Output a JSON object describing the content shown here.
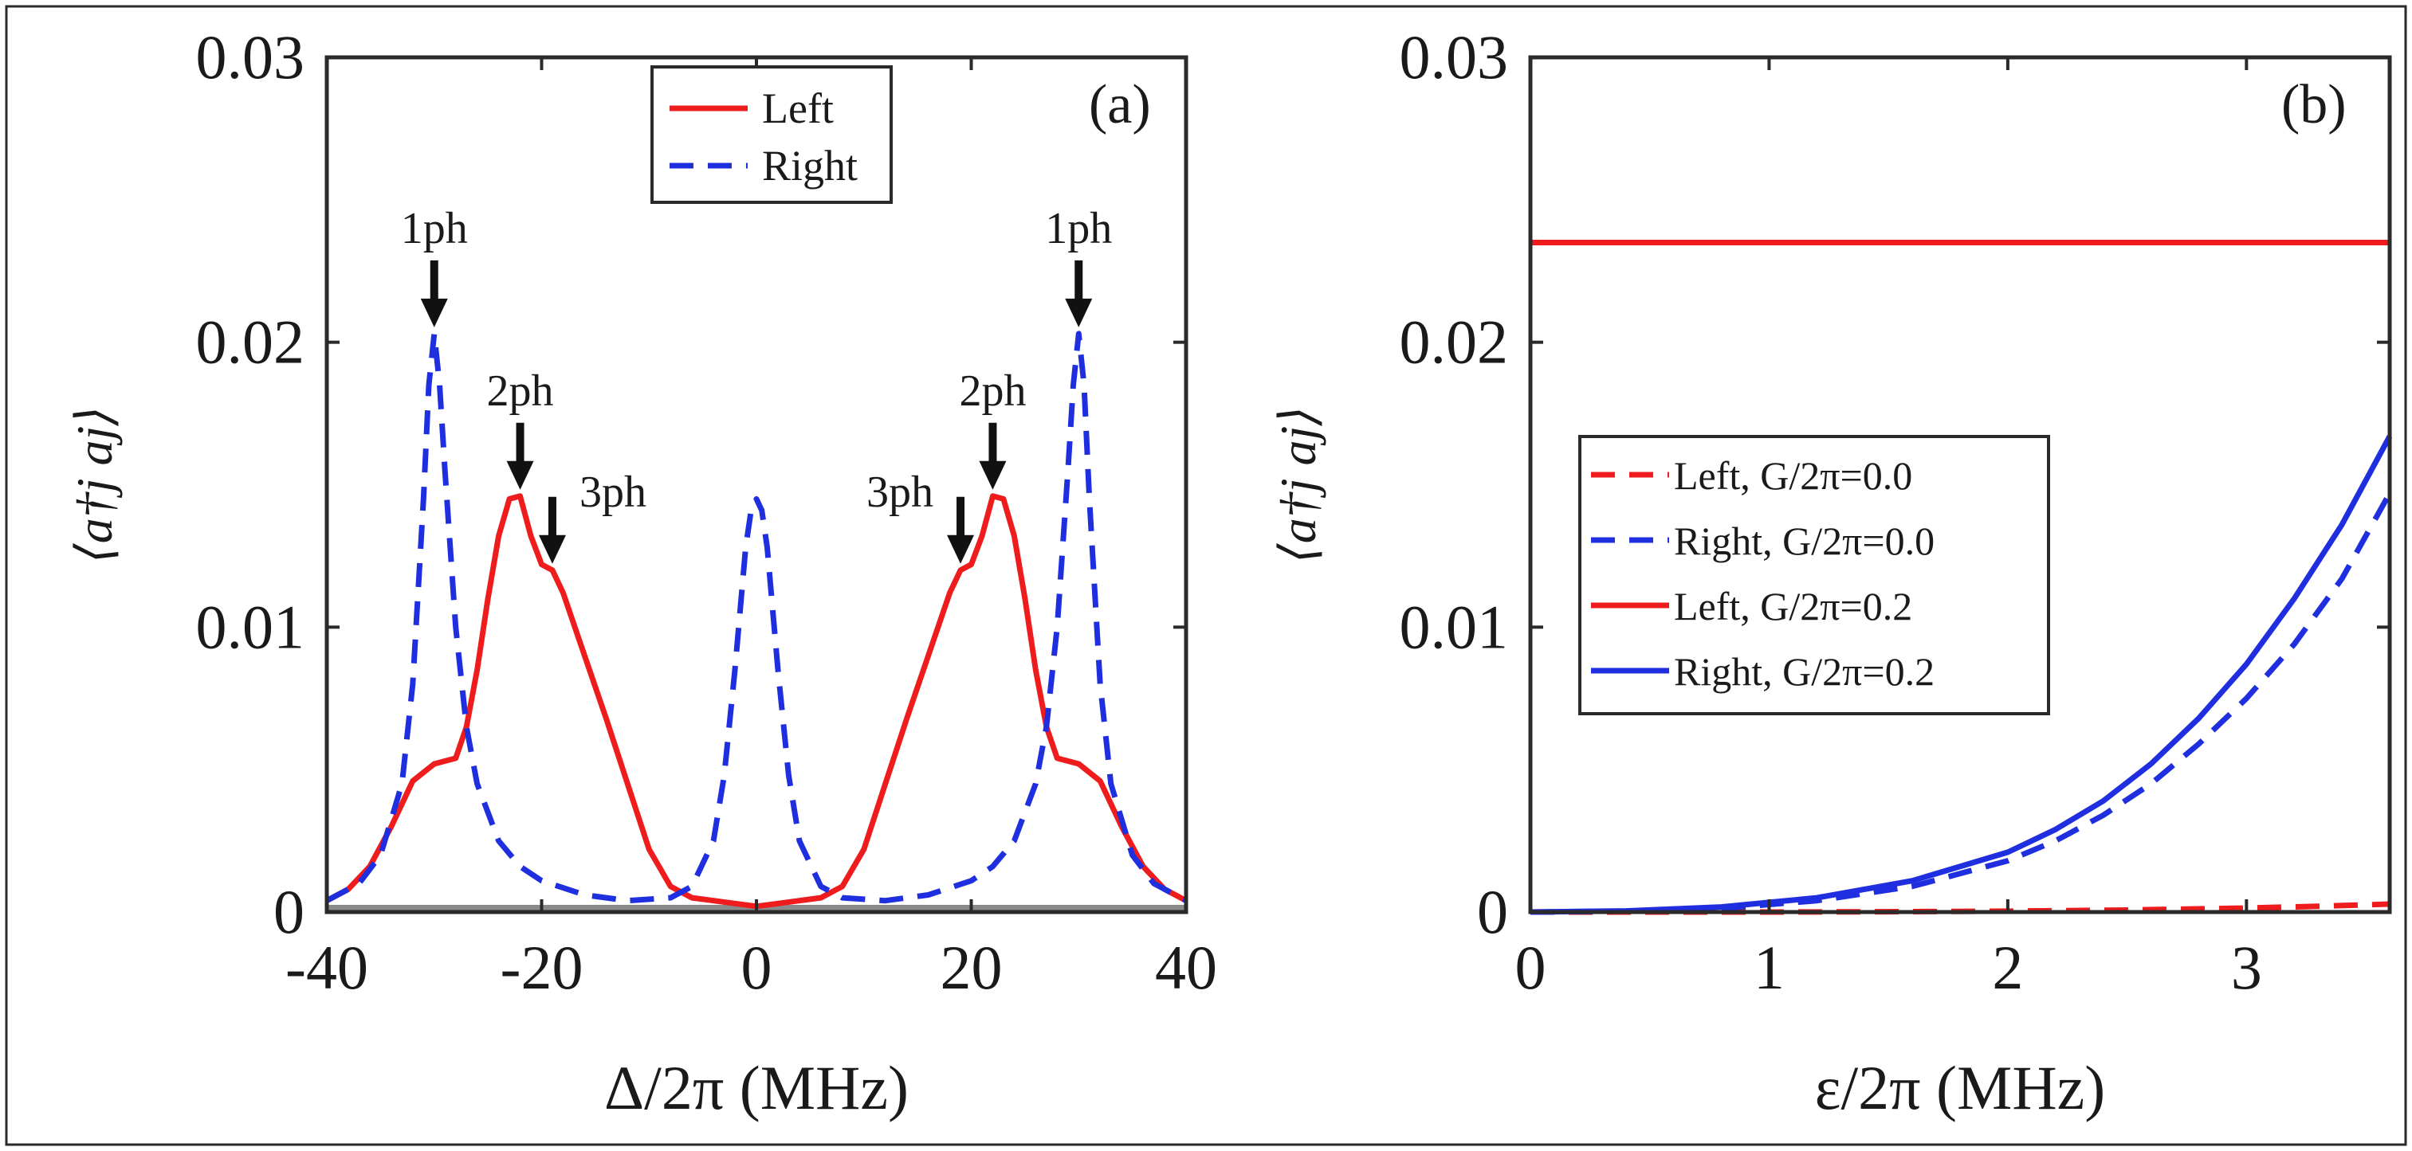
{
  "colors": {
    "left": "#ee1c1c",
    "right": "#1f2fe0",
    "axis": "#2a2a2a",
    "arrow": "#111111"
  },
  "chart_data": [
    {
      "panel": "(a)",
      "type": "line",
      "xlabel": "Δ/2π (MHz)",
      "ylabel": "⟨a†j aj⟩",
      "xlim": [
        -40,
        40
      ],
      "ylim": [
        0,
        0.03
      ],
      "xticks": [
        -40,
        -20,
        0,
        20,
        40
      ],
      "xtick_labels": [
        "-40",
        "-20",
        "0",
        "20",
        "40"
      ],
      "yticks": [
        0,
        0.01,
        0.02,
        0.03
      ],
      "ytick_labels": [
        "0",
        "0.01",
        "0.02",
        "0.03"
      ],
      "legend": {
        "placement": "top-center",
        "entries": [
          "Left",
          "Right"
        ]
      },
      "series": [
        {
          "name": "Left",
          "style": "solid",
          "color_key": "left",
          "x": [
            -40,
            -38,
            -36,
            -34,
            -32,
            -30,
            -28,
            -27,
            -26,
            -25,
            -24,
            -23,
            -22,
            -21,
            -20,
            -19,
            -18,
            -16,
            -14,
            -12,
            -10,
            -8,
            -6,
            -4,
            -2,
            0,
            2,
            4,
            6,
            8,
            10,
            12,
            14,
            16,
            18,
            19,
            20,
            21,
            22,
            23,
            24,
            25,
            26,
            27,
            28,
            30,
            32,
            34,
            36,
            38,
            40
          ],
          "y": [
            0.0004,
            0.0008,
            0.0016,
            0.003,
            0.0046,
            0.0052,
            0.0054,
            0.0065,
            0.0085,
            0.011,
            0.0132,
            0.0145,
            0.0146,
            0.0132,
            0.0122,
            0.012,
            0.0112,
            0.009,
            0.0068,
            0.0045,
            0.0022,
            0.0009,
            0.0005,
            0.0004,
            0.0003,
            0.0002,
            0.0003,
            0.0004,
            0.0005,
            0.0009,
            0.0022,
            0.0045,
            0.0068,
            0.009,
            0.0112,
            0.012,
            0.0122,
            0.0132,
            0.0146,
            0.0145,
            0.0132,
            0.011,
            0.0085,
            0.0065,
            0.0054,
            0.0052,
            0.0046,
            0.003,
            0.0016,
            0.0008,
            0.0004
          ]
        },
        {
          "name": "Right",
          "style": "dashed",
          "color_key": "right",
          "x": [
            -40,
            -37,
            -35,
            -33,
            -32,
            -31,
            -30.5,
            -30,
            -29.5,
            -29,
            -28,
            -27,
            -26,
            -24,
            -22,
            -20,
            -16,
            -12,
            -8,
            -6,
            -4,
            -3,
            -2,
            -1,
            -0.5,
            0,
            0.5,
            1,
            2,
            3,
            4,
            6,
            8,
            12,
            16,
            20,
            22,
            24,
            26,
            27,
            28,
            29,
            29.5,
            30,
            30.5,
            31,
            32,
            33,
            35,
            37,
            40
          ],
          "y": [
            0.0004,
            0.001,
            0.002,
            0.0045,
            0.008,
            0.0145,
            0.0185,
            0.0203,
            0.0185,
            0.0155,
            0.01,
            0.0065,
            0.0045,
            0.0025,
            0.0016,
            0.0011,
            0.0006,
            0.0004,
            0.0005,
            0.0009,
            0.0025,
            0.0048,
            0.0085,
            0.0128,
            0.0141,
            0.0145,
            0.0141,
            0.0128,
            0.0085,
            0.0048,
            0.0025,
            0.0009,
            0.0005,
            0.0004,
            0.0006,
            0.0011,
            0.0016,
            0.0025,
            0.0045,
            0.0065,
            0.01,
            0.0155,
            0.0185,
            0.0203,
            0.0185,
            0.0145,
            0.008,
            0.0045,
            0.002,
            0.001,
            0.0004
          ]
        }
      ],
      "annotations": [
        {
          "text": "1ph",
          "x": -30,
          "y": 0.0203
        },
        {
          "text": "2ph",
          "x": -22,
          "y": 0.0146
        },
        {
          "text": "3ph",
          "x": -19,
          "y": 0.012
        },
        {
          "text": "3ph",
          "x": 19,
          "y": 0.012
        },
        {
          "text": "2ph",
          "x": 22,
          "y": 0.0146
        },
        {
          "text": "1ph",
          "x": 30,
          "y": 0.0203
        }
      ]
    },
    {
      "panel": "(b)",
      "type": "line",
      "xlabel": "ε/2π (MHz)",
      "ylabel": "⟨a†j aj⟩",
      "xlim": [
        0,
        3.6
      ],
      "ylim": [
        0,
        0.03
      ],
      "xticks": [
        0,
        1,
        2,
        3
      ],
      "xtick_labels": [
        "0",
        "1",
        "2",
        "3"
      ],
      "yticks": [
        0,
        0.01,
        0.02,
        0.03
      ],
      "ytick_labels": [
        "0",
        "0.01",
        "0.02",
        "0.03"
      ],
      "legend": {
        "placement": "center-left",
        "entries": [
          "Left, G/2π=0.0",
          "Right, G/2π=0.0",
          "Left, G/2π=0.2",
          "Right, G/2π=0.2"
        ]
      },
      "series": [
        {
          "name": "Left, G/2π=0.0",
          "style": "dashed",
          "color_key": "left",
          "x": [
            0,
            0.5,
            1,
            1.5,
            2,
            2.5,
            3,
            3.3,
            3.6
          ],
          "y": [
            0,
            0,
            0,
            1e-05,
            3e-05,
            7e-05,
            0.00014,
            0.0002,
            0.00028
          ]
        },
        {
          "name": "Right, G/2π=0.0",
          "style": "dashed",
          "color_key": "right",
          "x": [
            0,
            0.4,
            0.8,
            1.2,
            1.6,
            2.0,
            2.2,
            2.4,
            2.6,
            2.8,
            3.0,
            3.2,
            3.4,
            3.6
          ],
          "y": [
            0,
            3e-05,
            0.00013,
            0.0004,
            0.0009,
            0.0018,
            0.0025,
            0.0034,
            0.0045,
            0.0059,
            0.0075,
            0.0094,
            0.0117,
            0.0147
          ]
        },
        {
          "name": "Left, G/2π=0.2",
          "style": "solid",
          "color_key": "left",
          "x": [
            0,
            3.6
          ],
          "y": [
            0.0235,
            0.0235
          ]
        },
        {
          "name": "Right, G/2π=0.2",
          "style": "solid",
          "color_key": "right",
          "x": [
            0,
            0.4,
            0.8,
            1.2,
            1.6,
            2.0,
            2.2,
            2.4,
            2.6,
            2.8,
            3.0,
            3.2,
            3.4,
            3.6
          ],
          "y": [
            0,
            4e-05,
            0.00018,
            0.0005,
            0.0011,
            0.0021,
            0.0029,
            0.0039,
            0.0052,
            0.0068,
            0.0087,
            0.011,
            0.0136,
            0.0167
          ]
        }
      ]
    }
  ]
}
